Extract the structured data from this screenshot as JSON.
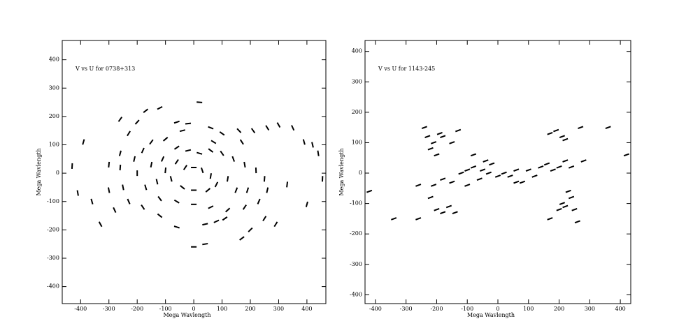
{
  "chart_data": [
    {
      "type": "scatter",
      "annotation": "V vs U for 0738+313",
      "xlabel": "Mega Wavlength",
      "ylabel": "Mega Wavlength",
      "color": "#000000",
      "xlim": [
        -465,
        467
      ],
      "ylim": [
        -460,
        468
      ],
      "xticks": [
        -400,
        -300,
        -200,
        -100,
        0,
        100,
        200,
        300,
        400
      ],
      "yticks": [
        -400,
        -300,
        -200,
        -100,
        0,
        100,
        200,
        300,
        400
      ],
      "x": [
        -390,
        -430,
        -410,
        -360,
        -330,
        -280,
        -260,
        -230,
        -200,
        -170,
        -120,
        -60,
        -20,
        20,
        60,
        100,
        160,
        170,
        210,
        260,
        300,
        350,
        390,
        420,
        440,
        455,
        400,
        290,
        250,
        200,
        170,
        110,
        80,
        40,
        0,
        40,
        -60,
        -120,
        -180,
        -230,
        -250,
        -300,
        -300,
        -260,
        -210,
        -180,
        -150,
        -100,
        -60,
        -20,
        20,
        60,
        100,
        140,
        180,
        220,
        250,
        260,
        230,
        180,
        120,
        60,
        0,
        -60,
        -120,
        -170,
        -200,
        -150,
        -110,
        -60,
        -30,
        0,
        30,
        60,
        80,
        50,
        0,
        -40,
        -80,
        -100,
        120,
        150,
        -40,
        70,
        -130,
        190,
        330,
        -260
      ],
      "values": [
        110,
        25,
        -70,
        -100,
        -180,
        -130,
        190,
        140,
        180,
        220,
        230,
        180,
        175,
        250,
        160,
        140,
        150,
        110,
        150,
        160,
        170,
        160,
        110,
        100,
        70,
        -20,
        -110,
        -180,
        -160,
        -200,
        -230,
        -160,
        -170,
        -180,
        -260,
        -250,
        -190,
        -150,
        -120,
        -100,
        -50,
        -60,
        30,
        20,
        50,
        80,
        110,
        120,
        90,
        80,
        70,
        80,
        70,
        50,
        30,
        10,
        -20,
        -60,
        -100,
        -120,
        -130,
        -120,
        -110,
        -100,
        -90,
        -50,
        0,
        30,
        50,
        40,
        20,
        20,
        10,
        -10,
        -40,
        -60,
        -60,
        -50,
        -20,
        10,
        -20,
        -60,
        150,
        110,
        -30,
        -60,
        -40,
        70
      ]
    },
    {
      "type": "scatter",
      "annotation": "V vs U for 1143-245",
      "xlabel": "Mega Wavlength",
      "ylabel": "Mega Wavlength",
      "color": "#000000",
      "xlim": [
        -434,
        434
      ],
      "ylim": [
        -429,
        436
      ],
      "xticks": [
        -400,
        -300,
        -200,
        -100,
        0,
        100,
        200,
        300,
        400
      ],
      "yticks": [
        -400,
        -300,
        -200,
        -100,
        0,
        100,
        200,
        300,
        400
      ],
      "x": [
        -420,
        -340,
        -260,
        -260,
        -240,
        -230,
        -220,
        -210,
        -200,
        -190,
        -180,
        -150,
        -130,
        -200,
        -180,
        -140,
        -160,
        -210,
        -180,
        -150,
        -120,
        -100,
        -80,
        -60,
        -50,
        -30,
        -20,
        0,
        20,
        40,
        60,
        80,
        100,
        120,
        140,
        160,
        180,
        200,
        220,
        240,
        280,
        170,
        190,
        210,
        220,
        270,
        360,
        420,
        170,
        200,
        220,
        250,
        240,
        260,
        230,
        210,
        -80,
        -40,
        60,
        -100,
        -220
      ],
      "values": [
        -60,
        -150,
        -150,
        -40,
        150,
        120,
        80,
        100,
        60,
        130,
        120,
        100,
        140,
        -120,
        -130,
        -130,
        -110,
        -40,
        -20,
        -30,
        0,
        10,
        20,
        -20,
        10,
        0,
        30,
        -10,
        0,
        -10,
        10,
        -30,
        10,
        -10,
        20,
        30,
        10,
        20,
        40,
        20,
        40,
        130,
        140,
        120,
        110,
        150,
        150,
        60,
        -150,
        -120,
        -110,
        -120,
        -80,
        -160,
        -60,
        -100,
        60,
        40,
        -30,
        -40,
        -80
      ]
    }
  ]
}
